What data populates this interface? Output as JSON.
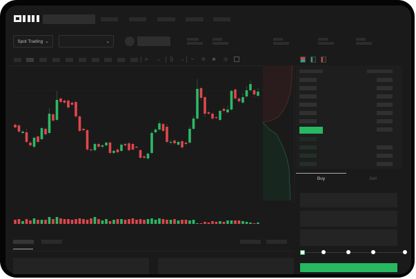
{
  "header": {
    "logo": "OKX",
    "market_select": "Spot Trading",
    "pair_select": ""
  },
  "toolbar": {
    "icons": [
      "candles-icon",
      "indicator-icon",
      "line-icon",
      "ruler-icon",
      "camera-icon",
      "settings-icon",
      "fullscreen-icon"
    ]
  },
  "orderbook": {
    "view_icons": [
      "both-sides-icon",
      "bids-icon",
      "asks-icon"
    ]
  },
  "trade": {
    "tabs": [
      "Buy",
      "Sell"
    ],
    "active_tab": "Buy",
    "slider_percent": 0
  },
  "colors": {
    "up": "#2db866",
    "down": "#e0474c",
    "background": "#1a1a1a"
  },
  "chart_data": {
    "type": "candlestick",
    "ohlc": [
      [
        69,
        71,
        63,
        65
      ],
      [
        68,
        70,
        57,
        59
      ],
      [
        57,
        61,
        55,
        59
      ],
      [
        58,
        63,
        42,
        44
      ],
      [
        43,
        45,
        37,
        39
      ],
      [
        37,
        52,
        35,
        50
      ],
      [
        52,
        54,
        42,
        44
      ],
      [
        48,
        66,
        46,
        64
      ],
      [
        63,
        65,
        53,
        55
      ],
      [
        57,
        93,
        55,
        85
      ],
      [
        84,
        86,
        73,
        75
      ],
      [
        76,
        118,
        74,
        105
      ],
      [
        107,
        109,
        100,
        102
      ],
      [
        104,
        106,
        99,
        101
      ],
      [
        104,
        106,
        92,
        94
      ],
      [
        101,
        103,
        96,
        98
      ],
      [
        102,
        104,
        79,
        81
      ],
      [
        81,
        83,
        58,
        60
      ],
      [
        63,
        65,
        59,
        61
      ],
      [
        61,
        63,
        31,
        33
      ],
      [
        33,
        35,
        30,
        32
      ],
      [
        32,
        43,
        30,
        41
      ],
      [
        41,
        43,
        35,
        37
      ],
      [
        37,
        41,
        34,
        39
      ],
      [
        39,
        45,
        37,
        43
      ],
      [
        43,
        45,
        26,
        28
      ],
      [
        28,
        33,
        26,
        31
      ],
      [
        33,
        35,
        27,
        29
      ],
      [
        31,
        42,
        29,
        40
      ],
      [
        41,
        43,
        37,
        39
      ],
      [
        42,
        44,
        30,
        32
      ],
      [
        41,
        43,
        31,
        33
      ],
      [
        37,
        38,
        35,
        36
      ],
      [
        32,
        34,
        19,
        21
      ],
      [
        23,
        25,
        19,
        21
      ],
      [
        20,
        29,
        18,
        27
      ],
      [
        28,
        60,
        26,
        57
      ],
      [
        58,
        64,
        56,
        62
      ],
      [
        62,
        75,
        60,
        71
      ],
      [
        70,
        72,
        58,
        60
      ],
      [
        66,
        70,
        42,
        44
      ],
      [
        43,
        47,
        40,
        44
      ],
      [
        46,
        48,
        40,
        42
      ],
      [
        40,
        46,
        38,
        44
      ],
      [
        45,
        47,
        34,
        36
      ],
      [
        43,
        45,
        39,
        41
      ],
      [
        43,
        67,
        41,
        63
      ],
      [
        63,
        82,
        61,
        78
      ],
      [
        78,
        135,
        76,
        121
      ],
      [
        122,
        124,
        104,
        108
      ],
      [
        109,
        111,
        80,
        85
      ],
      [
        87,
        89,
        83,
        85
      ],
      [
        85,
        87,
        76,
        78
      ],
      [
        80,
        82,
        77,
        79
      ],
      [
        76,
        91,
        74,
        89
      ],
      [
        92,
        95,
        87,
        89
      ],
      [
        87,
        97,
        85,
        91
      ],
      [
        91,
        120,
        89,
        118
      ],
      [
        120,
        122,
        105,
        107
      ],
      [
        107,
        109,
        101,
        103
      ],
      [
        101,
        115,
        99,
        109
      ],
      [
        110,
        125,
        108,
        119
      ],
      [
        119,
        133,
        117,
        128
      ],
      [
        119,
        121,
        109,
        113
      ],
      [
        111,
        123,
        109,
        117
      ]
    ],
    "volume": [
      6,
      7,
      4,
      7,
      5,
      8,
      6,
      6,
      6,
      10,
      7,
      10,
      8,
      7,
      7,
      6,
      7,
      8,
      7,
      6,
      8,
      10,
      7,
      5,
      7,
      4,
      6,
      7,
      7,
      6,
      7,
      8,
      6,
      7,
      6,
      7,
      8,
      6,
      8,
      7,
      6,
      6,
      7,
      5,
      6,
      6,
      5,
      6,
      1,
      1,
      3,
      2,
      4,
      3,
      4,
      3,
      5,
      5,
      5,
      5,
      4,
      3,
      2,
      1,
      2
    ]
  }
}
